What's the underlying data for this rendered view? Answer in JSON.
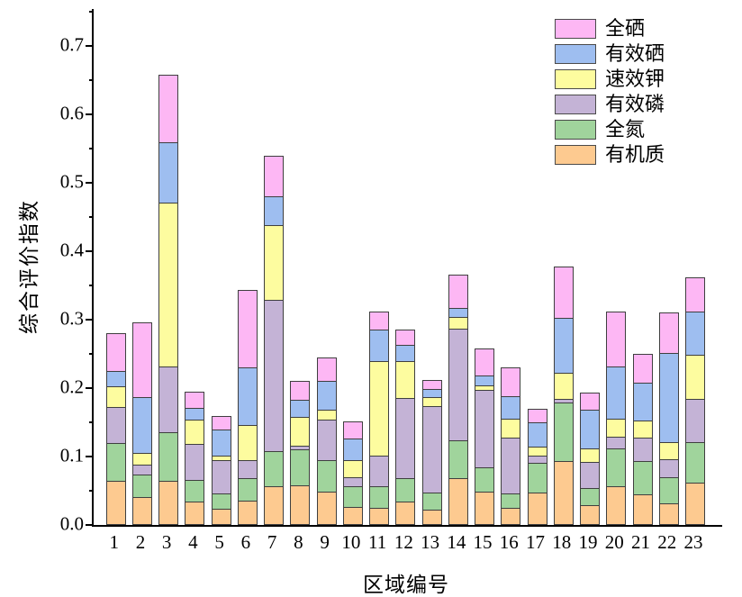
{
  "chart_data": {
    "type": "bar",
    "variant": "stacked-vertical",
    "title": "",
    "xlabel": "区域编号",
    "ylabel": "综合评价指数",
    "categories": [
      "1",
      "2",
      "3",
      "4",
      "5",
      "6",
      "7",
      "8",
      "9",
      "10",
      "11",
      "12",
      "13",
      "14",
      "15",
      "16",
      "17",
      "18",
      "19",
      "20",
      "21",
      "22",
      "23"
    ],
    "ylim": [
      0,
      0.75
    ],
    "ytick_labels": [
      "0.0",
      "0.1",
      "0.2",
      "0.3",
      "0.4",
      "0.5",
      "0.6",
      "0.7"
    ],
    "ytick_values": [
      0.0,
      0.1,
      0.2,
      0.3,
      0.4,
      0.5,
      0.6,
      0.7
    ],
    "minor_ytick_values": [
      0.05,
      0.15,
      0.25,
      0.35,
      0.45,
      0.55,
      0.65,
      0.75
    ],
    "grid": "off",
    "legend_position": "top-right-inside",
    "legend_order_top_to_bottom": [
      "全硒",
      "有效硒",
      "速效钾",
      "有效磷",
      "全氮",
      "有机质"
    ],
    "segment_border_color": "#3f3f3f",
    "axis_color": "#000000",
    "series": [
      {
        "name": "有机质",
        "color": "#fdca90",
        "values": [
          0.065,
          0.041,
          0.065,
          0.034,
          0.024,
          0.036,
          0.056,
          0.058,
          0.049,
          0.026,
          0.025,
          0.034,
          0.023,
          0.068,
          0.049,
          0.025,
          0.048,
          0.093,
          0.029,
          0.056,
          0.045,
          0.032,
          0.062
        ]
      },
      {
        "name": "全氮",
        "color": "#a0d49c",
        "values": [
          0.056,
          0.034,
          0.073,
          0.033,
          0.024,
          0.034,
          0.053,
          0.054,
          0.048,
          0.031,
          0.033,
          0.036,
          0.026,
          0.056,
          0.037,
          0.023,
          0.045,
          0.087,
          0.026,
          0.057,
          0.05,
          0.039,
          0.06
        ]
      },
      {
        "name": "有效磷",
        "color": "#c4b3d6",
        "values": [
          0.054,
          0.016,
          0.098,
          0.054,
          0.05,
          0.028,
          0.222,
          0.007,
          0.061,
          0.015,
          0.046,
          0.118,
          0.128,
          0.165,
          0.114,
          0.083,
          0.012,
          0.007,
          0.039,
          0.018,
          0.035,
          0.028,
          0.065
        ]
      },
      {
        "name": "速效钾",
        "color": "#fdfc9f",
        "values": [
          0.031,
          0.018,
          0.241,
          0.037,
          0.008,
          0.052,
          0.111,
          0.043,
          0.016,
          0.026,
          0.139,
          0.055,
          0.015,
          0.018,
          0.008,
          0.029,
          0.015,
          0.04,
          0.021,
          0.027,
          0.026,
          0.026,
          0.066
        ]
      },
      {
        "name": "有效硒",
        "color": "#9ebef0",
        "values": [
          0.024,
          0.083,
          0.09,
          0.019,
          0.04,
          0.085,
          0.044,
          0.026,
          0.043,
          0.033,
          0.047,
          0.025,
          0.013,
          0.015,
          0.016,
          0.034,
          0.037,
          0.081,
          0.058,
          0.078,
          0.057,
          0.132,
          0.065
        ]
      },
      {
        "name": "全硒",
        "color": "#fdb7f4",
        "values": [
          0.056,
          0.111,
          0.1,
          0.025,
          0.021,
          0.115,
          0.06,
          0.029,
          0.036,
          0.026,
          0.028,
          0.024,
          0.015,
          0.05,
          0.041,
          0.043,
          0.021,
          0.076,
          0.026,
          0.082,
          0.044,
          0.061,
          0.051
        ]
      }
    ]
  }
}
